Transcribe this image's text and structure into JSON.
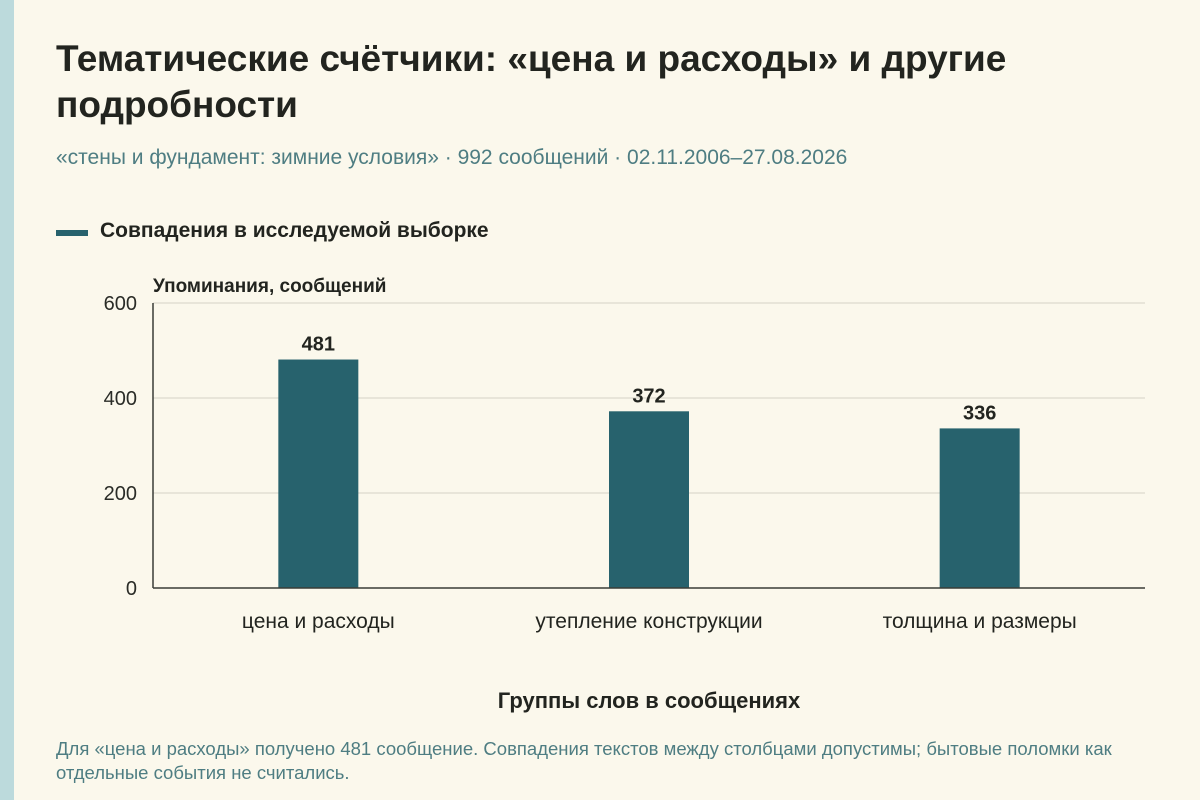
{
  "header": {
    "title": "Тематические счётчики: «цена и расходы» и другие подробности",
    "subtitle": "«стены и фундамент: зимние условия» · 992 сообщений · 02.11.2006–27.08.2026"
  },
  "legend": {
    "label": "Совпадения в исследуемой выборке",
    "color": "#27626d"
  },
  "chart_data": {
    "type": "bar",
    "categories": [
      "цена и расходы",
      "утепление конструкции",
      "толщина и размеры"
    ],
    "series": [
      {
        "name": "Совпадения в исследуемой выборке",
        "values": [
          481,
          372,
          336
        ],
        "color": "#27626d"
      }
    ],
    "ylabel": "Упоминания, сообщений",
    "xlabel": "Группы слов в сообщениях",
    "ylim": [
      0,
      600
    ],
    "yticks": [
      0,
      200,
      400,
      600
    ],
    "grid": true,
    "legend_position": "top-left"
  },
  "footer": {
    "note": "Для «цена и расходы» получено 481 сообщение. Совпадения текстов между столбцами допустимы; бытовые поломки как отдельные события не считались."
  }
}
